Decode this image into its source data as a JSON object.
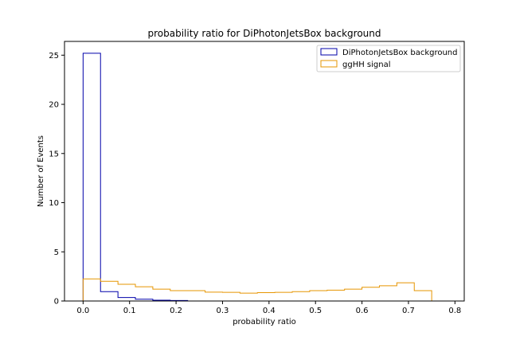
{
  "chart_data": {
    "type": "histogram",
    "title": "probability ratio for DiPhotonJetsBox background",
    "xlabel": "probability ratio",
    "ylabel": "Number of Events",
    "xlim": [
      -0.04,
      0.82
    ],
    "ylim": [
      0,
      26.4
    ],
    "xticks": [
      "0.0",
      "0.1",
      "0.2",
      "0.3",
      "0.4",
      "0.5",
      "0.6",
      "0.7",
      "0.8"
    ],
    "yticks": [
      "0",
      "5",
      "10",
      "15",
      "20",
      "25"
    ],
    "legend_position": "upper right",
    "bin_edges": [
      0.0,
      0.0375,
      0.075,
      0.1125,
      0.15,
      0.1875,
      0.225,
      0.2625,
      0.3,
      0.3375,
      0.375,
      0.4125,
      0.45,
      0.4875,
      0.525,
      0.5625,
      0.6,
      0.6375,
      0.675,
      0.7125,
      0.75,
      0.7875
    ],
    "series": [
      {
        "name": "DiPhotonJetsBox background",
        "color": "#0000aa",
        "values": [
          25.2,
          0.95,
          0.35,
          0.18,
          0.08,
          0.05,
          0,
          0,
          0,
          0,
          0,
          0,
          0,
          0,
          0,
          0,
          0,
          0,
          0,
          0,
          0
        ]
      },
      {
        "name": "ggHH signal",
        "color": "#e69500",
        "values": [
          2.25,
          2.0,
          1.7,
          1.45,
          1.2,
          1.05,
          1.05,
          0.9,
          0.88,
          0.8,
          0.85,
          0.88,
          0.95,
          1.05,
          1.1,
          1.2,
          1.4,
          1.55,
          1.85,
          1.05,
          0
        ]
      }
    ]
  }
}
